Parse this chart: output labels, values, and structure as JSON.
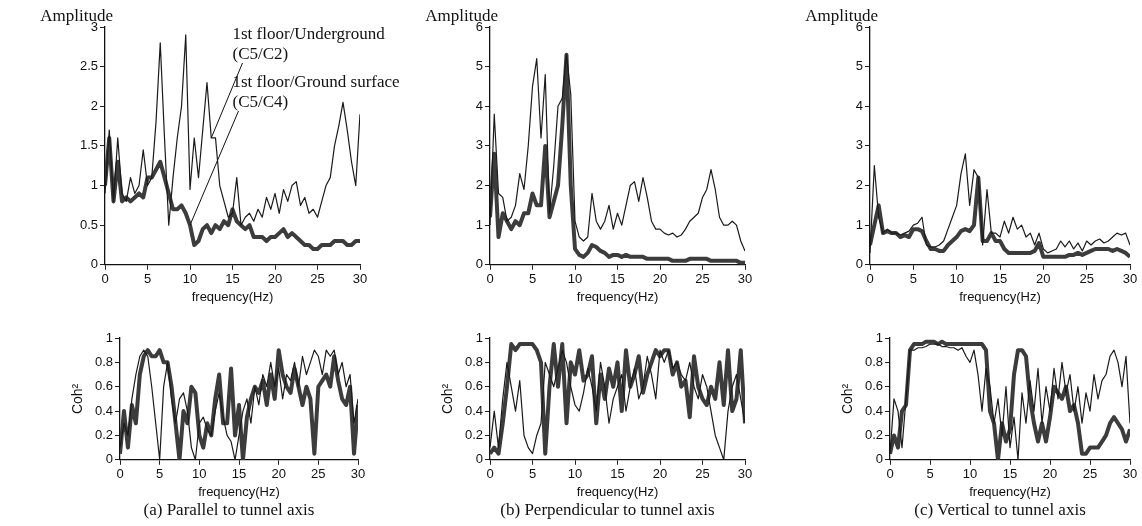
{
  "chart_data": [
    {
      "type": "line",
      "ylabel": "Amplitude",
      "xlabel": "frequency(Hz)",
      "xlim": [
        0,
        30
      ],
      "xticks": [
        0,
        5,
        10,
        15,
        20,
        25,
        30
      ],
      "ylim": [
        0,
        3
      ],
      "yticks": [
        0,
        0.5,
        1,
        1.5,
        2,
        2.5,
        3
      ],
      "x": [
        0,
        0.5,
        1,
        1.5,
        2,
        2.5,
        3,
        3.5,
        4,
        4.5,
        5,
        5.5,
        6,
        6.5,
        7,
        7.5,
        8,
        8.5,
        9,
        9.5,
        10,
        10.5,
        11,
        11.5,
        12,
        12.5,
        13,
        13.5,
        14,
        14.5,
        15,
        15.5,
        16,
        16.5,
        17,
        17.5,
        18,
        18.5,
        19,
        19.5,
        20,
        20.5,
        21,
        21.5,
        22,
        22.5,
        23,
        23.5,
        24,
        24.5,
        25,
        25.5,
        26,
        26.5,
        27,
        27.5,
        28,
        28.5,
        29,
        29.5,
        30
      ],
      "series": [
        {
          "name": "1st floor/Underground (C5/C2)",
          "color": "#1a1a1a",
          "values": [
            0.9,
            1.7,
            0.8,
            1.6,
            0.9,
            0.8,
            1.1,
            0.9,
            1.0,
            1.45,
            1.0,
            1.1,
            1.8,
            2.8,
            1.6,
            0.5,
            1.1,
            1.6,
            2.0,
            2.9,
            0.95,
            1.6,
            1.1,
            1.7,
            2.3,
            1.6,
            1.6,
            1.0,
            0.8,
            0.6,
            0.65,
            1.1,
            0.5,
            0.6,
            0.65,
            0.55,
            0.7,
            0.6,
            0.85,
            0.7,
            0.9,
            0.65,
            0.95,
            0.8,
            1.0,
            1.05,
            0.75,
            0.85,
            0.65,
            0.7,
            0.6,
            0.8,
            1.0,
            1.1,
            1.5,
            1.75,
            2.05,
            1.7,
            1.3,
            1.0,
            1.9
          ]
        },
        {
          "name": "1st floor/Ground surface (C5/C4)",
          "color": "#3c3c3c",
          "values": [
            1.0,
            1.6,
            0.8,
            1.3,
            0.8,
            0.85,
            0.8,
            0.85,
            0.9,
            0.85,
            1.1,
            1.1,
            1.2,
            1.3,
            1.1,
            0.9,
            0.7,
            0.7,
            0.75,
            0.65,
            0.5,
            0.25,
            0.3,
            0.45,
            0.5,
            0.4,
            0.5,
            0.45,
            0.55,
            0.5,
            0.7,
            0.55,
            0.5,
            0.45,
            0.5,
            0.35,
            0.35,
            0.35,
            0.3,
            0.35,
            0.35,
            0.4,
            0.45,
            0.35,
            0.4,
            0.35,
            0.3,
            0.25,
            0.25,
            0.2,
            0.2,
            0.25,
            0.25,
            0.25,
            0.3,
            0.3,
            0.3,
            0.25,
            0.25,
            0.3,
            0.3
          ]
        }
      ]
    },
    {
      "type": "line",
      "ylabel": "Amplitude",
      "xlabel": "frequency(Hz)",
      "xlim": [
        0,
        30
      ],
      "xticks": [
        0,
        5,
        10,
        15,
        20,
        25,
        30
      ],
      "ylim": [
        0,
        6
      ],
      "yticks": [
        0,
        1,
        2,
        3,
        4,
        5,
        6
      ],
      "x": [
        0,
        0.5,
        1,
        1.5,
        2,
        2.5,
        3,
        3.5,
        4,
        4.5,
        5,
        5.5,
        6,
        6.5,
        7,
        7.5,
        8,
        8.5,
        9,
        9.5,
        10,
        10.5,
        11,
        11.5,
        12,
        12.5,
        13,
        13.5,
        14,
        14.5,
        15,
        15.5,
        16,
        16.5,
        17,
        17.5,
        18,
        18.5,
        19,
        19.5,
        20,
        20.5,
        21,
        21.5,
        22,
        22.5,
        23,
        23.5,
        24,
        24.5,
        25,
        25.5,
        26,
        26.5,
        27,
        27.5,
        28,
        28.5,
        29,
        29.5,
        30
      ],
      "series": [
        {
          "color": "#1a1a1a",
          "values": [
            1.0,
            3.8,
            1.8,
            1.7,
            1.1,
            1.2,
            1.5,
            2.3,
            1.9,
            3.0,
            4.5,
            5.2,
            3.2,
            4.8,
            1.3,
            2.5,
            4.0,
            4.2,
            5.3,
            4.3,
            1.1,
            0.7,
            0.6,
            0.7,
            1.8,
            1.1,
            0.9,
            1.1,
            1.5,
            0.9,
            1.3,
            1.0,
            1.5,
            2.0,
            2.1,
            1.6,
            2.2,
            1.7,
            1.1,
            0.9,
            0.9,
            0.8,
            0.75,
            0.8,
            0.7,
            0.75,
            0.9,
            1.1,
            1.2,
            1.3,
            1.7,
            1.9,
            2.4,
            1.9,
            1.2,
            1.0,
            1.0,
            1.1,
            1.0,
            0.6,
            0.35
          ]
        },
        {
          "color": "#3c3c3c",
          "values": [
            1.2,
            2.8,
            0.7,
            1.3,
            1.1,
            0.9,
            1.1,
            1.0,
            1.3,
            1.3,
            1.8,
            1.5,
            1.5,
            3.0,
            1.2,
            1.6,
            2.0,
            3.5,
            5.3,
            2.0,
            0.4,
            0.25,
            0.2,
            0.3,
            0.5,
            0.45,
            0.35,
            0.3,
            0.2,
            0.25,
            0.25,
            0.2,
            0.25,
            0.2,
            0.2,
            0.2,
            0.2,
            0.15,
            0.15,
            0.15,
            0.15,
            0.15,
            0.15,
            0.1,
            0.1,
            0.1,
            0.1,
            0.15,
            0.15,
            0.15,
            0.15,
            0.15,
            0.1,
            0.1,
            0.1,
            0.1,
            0.1,
            0.1,
            0.1,
            0.05,
            0.05
          ]
        }
      ]
    },
    {
      "type": "line",
      "ylabel": "Amplitude",
      "xlabel": "frequency(Hz)",
      "xlim": [
        0,
        30
      ],
      "xticks": [
        0,
        5,
        10,
        15,
        20,
        25,
        30
      ],
      "ylim": [
        0,
        6
      ],
      "yticks": [
        0,
        1,
        2,
        3,
        4,
        5,
        6
      ],
      "x": [
        0,
        0.5,
        1,
        1.5,
        2,
        2.5,
        3,
        3.5,
        4,
        4.5,
        5,
        5.5,
        6,
        6.5,
        7,
        7.5,
        8,
        8.5,
        9,
        9.5,
        10,
        10.5,
        11,
        11.5,
        12,
        12.5,
        13,
        13.5,
        14,
        14.5,
        15,
        15.5,
        16,
        16.5,
        17,
        17.5,
        18,
        18.5,
        19,
        19.5,
        20,
        20.5,
        21,
        21.5,
        22,
        22.5,
        23,
        23.5,
        24,
        24.5,
        25,
        25.5,
        26,
        26.5,
        27,
        27.5,
        28,
        28.5,
        29,
        29.5,
        30
      ],
      "series": [
        {
          "color": "#1a1a1a",
          "values": [
            0.3,
            2.5,
            1.2,
            0.8,
            0.9,
            0.8,
            0.8,
            0.75,
            0.8,
            0.85,
            1.0,
            1.05,
            1.2,
            0.5,
            0.45,
            0.45,
            0.5,
            0.6,
            0.9,
            1.2,
            1.5,
            2.3,
            2.8,
            1.5,
            2.4,
            2.2,
            0.5,
            1.9,
            0.8,
            0.8,
            0.7,
            1.1,
            0.8,
            1.2,
            0.9,
            1.0,
            0.7,
            0.8,
            0.5,
            0.8,
            0.4,
            0.3,
            0.35,
            0.4,
            0.6,
            0.45,
            0.6,
            0.4,
            0.55,
            0.35,
            0.6,
            0.5,
            0.6,
            0.65,
            0.55,
            0.6,
            0.7,
            0.8,
            0.75,
            0.8,
            0.5
          ]
        },
        {
          "color": "#3c3c3c",
          "values": [
            0.5,
            1.0,
            1.5,
            0.8,
            0.85,
            0.8,
            0.8,
            0.7,
            0.75,
            0.7,
            0.9,
            0.9,
            0.85,
            0.6,
            0.4,
            0.4,
            0.35,
            0.35,
            0.5,
            0.6,
            0.7,
            0.85,
            0.9,
            0.85,
            1.0,
            2.2,
            0.6,
            0.6,
            0.8,
            0.6,
            0.6,
            0.4,
            0.3,
            0.3,
            0.3,
            0.3,
            0.3,
            0.3,
            0.35,
            0.55,
            0.2,
            0.2,
            0.2,
            0.2,
            0.2,
            0.2,
            0.25,
            0.25,
            0.3,
            0.25,
            0.3,
            0.35,
            0.4,
            0.4,
            0.4,
            0.4,
            0.35,
            0.4,
            0.35,
            0.3,
            0.2
          ]
        }
      ]
    },
    {
      "type": "line",
      "ylabel": "Coh²",
      "xlabel": "frequency(Hz)",
      "xlim": [
        0,
        30
      ],
      "xticks": [
        0,
        5,
        10,
        15,
        20,
        25,
        30
      ],
      "ylim": [
        0,
        1
      ],
      "yticks": [
        0,
        0.2,
        0.4,
        0.6,
        0.8,
        1
      ],
      "annotations": [
        "(a) Parallel to tunnel axis"
      ],
      "x": [
        0,
        0.5,
        1,
        1.5,
        2,
        2.5,
        3,
        3.5,
        4,
        4.5,
        5,
        5.5,
        6,
        6.5,
        7,
        7.5,
        8,
        8.5,
        9,
        9.5,
        10,
        10.5,
        11,
        11.5,
        12,
        12.5,
        13,
        13.5,
        14,
        14.5,
        15,
        15.5,
        16,
        16.5,
        17,
        17.5,
        18,
        18.5,
        19,
        19.5,
        20,
        20.5,
        21,
        21.5,
        22,
        22.5,
        23,
        23.5,
        24,
        24.5,
        25,
        25.5,
        26,
        26.5,
        27,
        27.5,
        28,
        28.5,
        29,
        29.5,
        30
      ],
      "series": [
        {
          "color": "#1a1a1a",
          "values": [
            0.1,
            0.3,
            0.2,
            0.5,
            0.7,
            0.85,
            0.9,
            0.85,
            0.6,
            0.3,
            0.0,
            0.6,
            0.8,
            0.5,
            0.3,
            0.5,
            0.55,
            0.4,
            0.1,
            0.0,
            0.3,
            0.35,
            0.25,
            0.2,
            0.4,
            0.55,
            0.35,
            0.2,
            0.15,
            0.0,
            0.2,
            0.4,
            0.5,
            0.3,
            0.6,
            0.45,
            0.7,
            0.6,
            0.8,
            0.6,
            0.75,
            0.5,
            0.7,
            0.65,
            0.8,
            0.6,
            0.85,
            0.7,
            0.8,
            0.9,
            0.85,
            0.7,
            0.9,
            0.85,
            0.9,
            0.7,
            0.8,
            0.6,
            0.7,
            0.3,
            0.5
          ]
        },
        {
          "color": "#3c3c3c",
          "values": [
            0.05,
            0.4,
            0.1,
            0.45,
            0.3,
            0.7,
            0.85,
            0.9,
            0.85,
            0.85,
            0.9,
            0.8,
            0.8,
            0.6,
            0.3,
            0.0,
            0.4,
            0.3,
            0.6,
            0.55,
            0.2,
            0.1,
            0.3,
            0.2,
            0.5,
            0.7,
            0.3,
            0.3,
            0.75,
            0.2,
            0.45,
            0.0,
            0.35,
            0.5,
            0.6,
            0.55,
            0.65,
            0.45,
            0.7,
            0.5,
            0.9,
            0.7,
            0.6,
            0.55,
            0.75,
            0.6,
            0.45,
            0.6,
            0.5,
            0.05,
            0.6,
            0.65,
            0.7,
            0.6,
            0.85,
            0.65,
            0.5,
            0.45,
            0.6,
            0.05,
            0.45
          ]
        }
      ]
    },
    {
      "type": "line",
      "ylabel": "Coh²",
      "xlabel": "frequency(Hz)",
      "xlim": [
        0,
        30
      ],
      "xticks": [
        0,
        5,
        10,
        15,
        20,
        25,
        30
      ],
      "ylim": [
        0,
        1
      ],
      "yticks": [
        0,
        0.2,
        0.4,
        0.6,
        0.8,
        1
      ],
      "annotations": [
        "(b) Perpendicular to tunnel axis"
      ],
      "x": [
        0,
        0.5,
        1,
        1.5,
        2,
        2.5,
        3,
        3.5,
        4,
        4.5,
        5,
        5.5,
        6,
        6.5,
        7,
        7.5,
        8,
        8.5,
        9,
        9.5,
        10,
        10.5,
        11,
        11.5,
        12,
        12.5,
        13,
        13.5,
        14,
        14.5,
        15,
        15.5,
        16,
        16.5,
        17,
        17.5,
        18,
        18.5,
        19,
        19.5,
        20,
        20.5,
        21,
        21.5,
        22,
        22.5,
        23,
        23.5,
        24,
        24.5,
        25,
        25.5,
        26,
        26.5,
        27,
        27.5,
        28,
        28.5,
        29,
        29.5,
        30
      ],
      "series": [
        {
          "color": "#1a1a1a",
          "values": [
            0.1,
            0.4,
            0.1,
            0.5,
            0.8,
            0.6,
            0.4,
            0.65,
            0.2,
            0.1,
            0.05,
            0.2,
            0.3,
            0.8,
            0.7,
            0.6,
            0.75,
            0.9,
            0.8,
            0.6,
            0.45,
            0.4,
            0.55,
            0.75,
            0.6,
            0.4,
            0.8,
            0.6,
            0.3,
            0.5,
            0.6,
            0.7,
            0.4,
            0.6,
            0.75,
            0.5,
            0.6,
            0.85,
            0.7,
            0.5,
            0.9,
            0.8,
            0.9,
            0.75,
            0.8,
            0.7,
            0.65,
            0.8,
            0.6,
            0.5,
            0.7,
            0.6,
            0.4,
            0.2,
            0.1,
            0.0,
            0.4,
            0.6,
            0.7,
            0.5,
            0.3
          ]
        },
        {
          "color": "#3c3c3c",
          "values": [
            0.05,
            0.1,
            0.05,
            0.3,
            0.6,
            0.95,
            0.9,
            0.95,
            0.95,
            0.95,
            0.95,
            0.9,
            0.8,
            0.05,
            0.6,
            0.95,
            0.6,
            0.95,
            0.3,
            0.8,
            0.7,
            0.9,
            0.65,
            0.7,
            0.85,
            0.3,
            0.7,
            0.5,
            0.75,
            0.6,
            0.8,
            0.4,
            0.9,
            0.6,
            0.7,
            0.85,
            0.55,
            0.7,
            0.8,
            0.9,
            0.85,
            0.9,
            0.9,
            0.7,
            0.8,
            0.6,
            0.65,
            0.35,
            0.85,
            0.6,
            0.5,
            0.45,
            0.6,
            0.5,
            0.8,
            0.45,
            0.9,
            0.4,
            0.5,
            0.9,
            0.3
          ]
        }
      ]
    },
    {
      "type": "line",
      "ylabel": "Coh²",
      "xlabel": "frequency(Hz)",
      "xlim": [
        0,
        30
      ],
      "xticks": [
        0,
        5,
        10,
        15,
        20,
        25,
        30
      ],
      "ylim": [
        0,
        1
      ],
      "yticks": [
        0,
        0.2,
        0.4,
        0.6,
        0.8,
        1
      ],
      "annotations": [
        "(c) Vertical to tunnel axis"
      ],
      "x": [
        0,
        0.5,
        1,
        1.5,
        2,
        2.5,
        3,
        3.5,
        4,
        4.5,
        5,
        5.5,
        6,
        6.5,
        7,
        7.5,
        8,
        8.5,
        9,
        9.5,
        10,
        10.5,
        11,
        11.5,
        12,
        12.5,
        13,
        13.5,
        14,
        14.5,
        15,
        15.5,
        16,
        16.5,
        17,
        17.5,
        18,
        18.5,
        19,
        19.5,
        20,
        20.5,
        21,
        21.5,
        22,
        22.5,
        23,
        23.5,
        24,
        24.5,
        25,
        25.5,
        26,
        26.5,
        27,
        27.5,
        28,
        28.5,
        29,
        29.5,
        30
      ],
      "series": [
        {
          "color": "#1a1a1a",
          "values": [
            0.05,
            0.5,
            0.4,
            0.1,
            0.5,
            0.9,
            0.9,
            0.92,
            0.92,
            0.93,
            0.95,
            0.95,
            0.95,
            0.93,
            0.93,
            0.92,
            0.92,
            0.9,
            0.92,
            0.85,
            0.8,
            0.9,
            0.7,
            0.4,
            0.75,
            0.6,
            0.3,
            0.5,
            0.2,
            0.6,
            0.1,
            0.35,
            0.0,
            0.55,
            0.3,
            0.65,
            0.4,
            0.75,
            0.3,
            0.6,
            0.4,
            0.75,
            0.5,
            0.8,
            0.55,
            0.7,
            0.4,
            0.6,
            0.3,
            0.55,
            0.4,
            0.7,
            0.5,
            0.65,
            0.7,
            0.85,
            0.9,
            0.8,
            0.6,
            0.85,
            0.3
          ]
        },
        {
          "color": "#3c3c3c",
          "values": [
            0.05,
            0.2,
            0.1,
            0.4,
            0.45,
            0.9,
            0.95,
            0.95,
            0.95,
            0.97,
            0.97,
            0.97,
            0.95,
            0.97,
            0.95,
            0.95,
            0.95,
            0.95,
            0.95,
            0.95,
            0.95,
            0.95,
            0.95,
            0.95,
            0.9,
            0.4,
            0.3,
            0.0,
            0.3,
            0.15,
            0.25,
            0.7,
            0.9,
            0.9,
            0.85,
            0.5,
            0.3,
            0.15,
            0.3,
            0.15,
            0.35,
            0.6,
            0.55,
            0.5,
            0.6,
            0.4,
            0.45,
            0.3,
            0.05,
            0.05,
            0.1,
            0.1,
            0.1,
            0.15,
            0.2,
            0.3,
            0.35,
            0.3,
            0.25,
            0.15,
            0.25
          ]
        }
      ]
    }
  ]
}
